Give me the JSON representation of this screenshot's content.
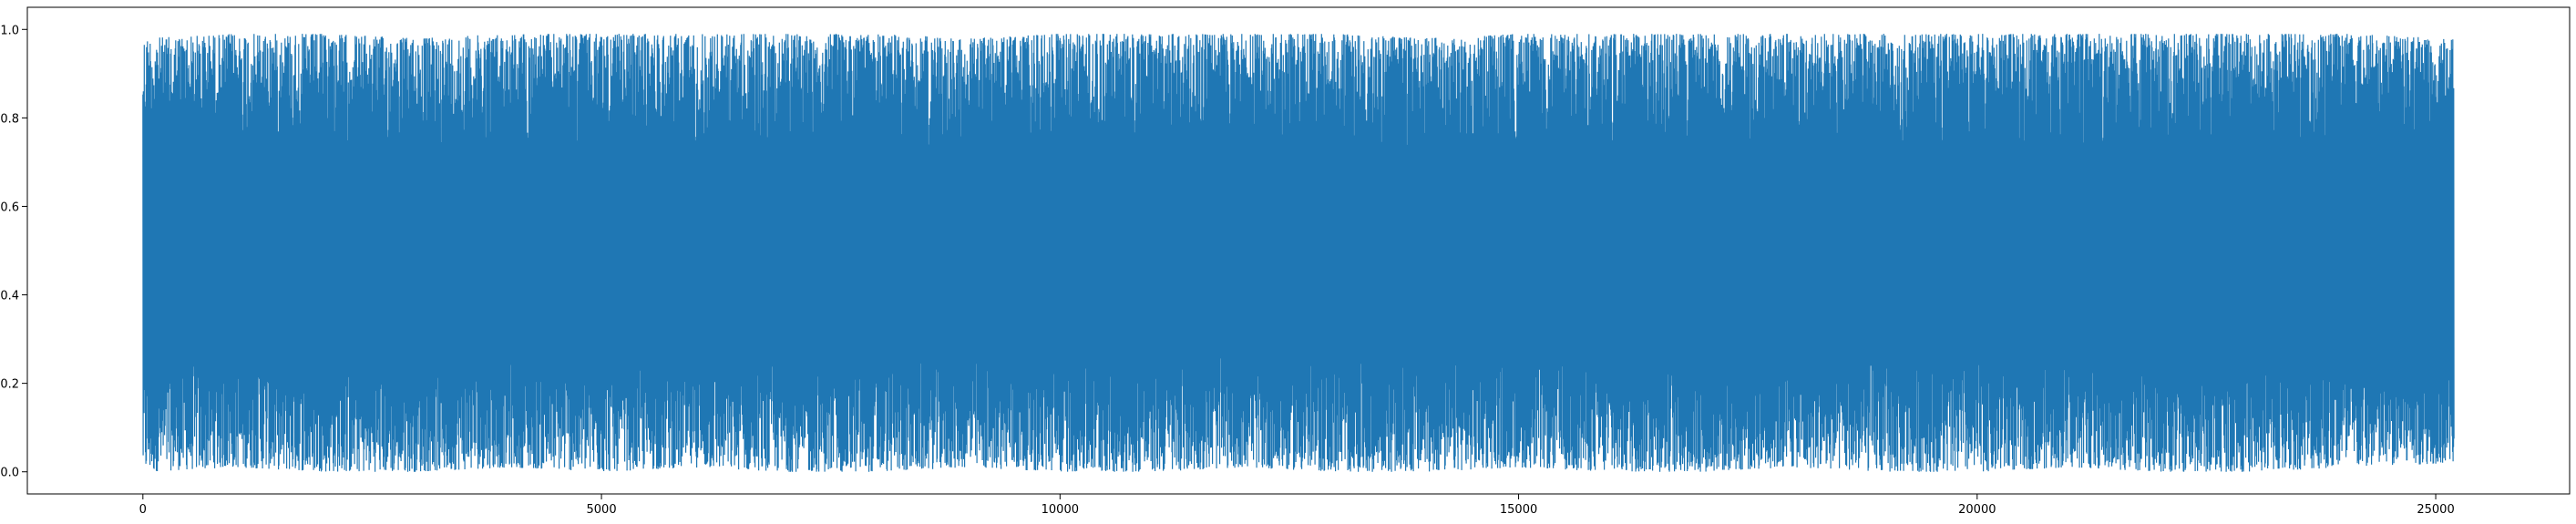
{
  "chart_data": {
    "type": "line",
    "title": "",
    "xlabel": "",
    "ylabel": "",
    "xlim": [
      -1260,
      26460
    ],
    "ylim": [
      -0.05,
      1.05
    ],
    "xticks": [
      0,
      5000,
      10000,
      15000,
      20000,
      25000
    ],
    "xtick_labels": [
      "0",
      "5000",
      "10000",
      "15000",
      "20000",
      "25000"
    ],
    "yticks": [
      0.0,
      0.2,
      0.4,
      0.6,
      0.8,
      1.0
    ],
    "ytick_labels": [
      "0.0",
      "0.2",
      "0.4",
      "0.6",
      "0.8",
      "1.0"
    ],
    "grid": false,
    "legend": "none",
    "series": [
      {
        "color": "#1f77b4",
        "n_points": 25200,
        "x_range": [
          0,
          25199
        ],
        "value_range": [
          0.0,
          1.0
        ],
        "distribution": "dense noise filling band from ~0.0 to ~1.0, mean ~0.5",
        "envelope_x": [
          0,
          1000,
          2000,
          3000,
          4000,
          5000,
          6000,
          7000,
          8000,
          9000,
          10000,
          11000,
          12000,
          13000,
          14000,
          15000,
          16000,
          17000,
          18000,
          19000,
          20000,
          21000,
          22000,
          23000,
          24000,
          25199
        ],
        "envelope_max": [
          0.98,
          0.99,
          0.99,
          0.98,
          0.99,
          0.99,
          0.99,
          0.99,
          0.99,
          0.98,
          0.99,
          0.99,
          0.99,
          0.99,
          0.98,
          0.99,
          0.99,
          0.99,
          0.99,
          0.99,
          0.99,
          0.99,
          0.99,
          0.99,
          0.99,
          0.98
        ],
        "envelope_min": [
          0.0,
          0.01,
          0.0,
          0.0,
          0.01,
          0.0,
          0.01,
          0.0,
          0.0,
          0.01,
          0.0,
          0.0,
          0.01,
          0.0,
          0.0,
          0.01,
          0.0,
          0.0,
          0.01,
          0.0,
          0.0,
          0.01,
          0.0,
          0.0,
          0.01,
          0.02
        ]
      }
    ]
  }
}
